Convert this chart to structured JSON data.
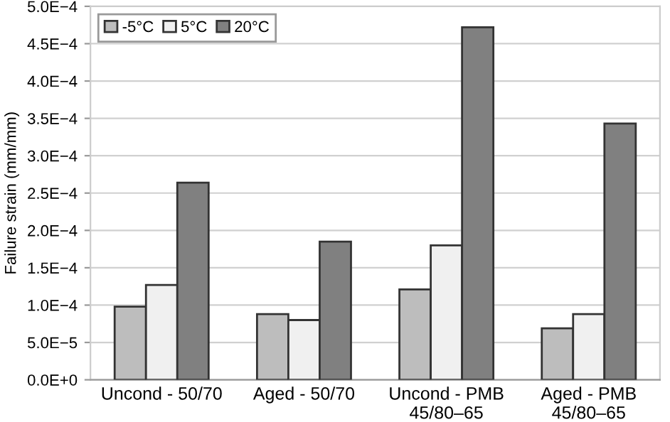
{
  "chart_data": {
    "type": "bar",
    "ylabel": "Failure strain (mm/mm)",
    "categories": [
      "Uncond - 50/70",
      "Aged - 50/70",
      "Uncond - PMB\n45/80–65",
      "Aged - PMB\n45/80–65"
    ],
    "series": [
      {
        "name": "-5°C",
        "color": "#bdbdbd",
        "values": [
          9.8e-05,
          8.8e-05,
          0.000121,
          6.9e-05
        ]
      },
      {
        "name": "5°C",
        "color": "#f0f0f0",
        "values": [
          0.000127,
          8e-05,
          0.00018,
          8.8e-05
        ]
      },
      {
        "name": "20°C",
        "color": "#808080",
        "values": [
          0.000264,
          0.000185,
          0.000472,
          0.000343
        ]
      }
    ],
    "ylim": [
      0,
      0.0005
    ],
    "yticks": [
      {
        "value": 0,
        "label": "0.0E+0"
      },
      {
        "value": 5e-05,
        "label": "5.0E−5"
      },
      {
        "value": 0.0001,
        "label": "1.0E−4"
      },
      {
        "value": 0.00015,
        "label": "1.5E−4"
      },
      {
        "value": 0.0002,
        "label": "2.0E−4"
      },
      {
        "value": 0.00025,
        "label": "2.5E−4"
      },
      {
        "value": 0.0003,
        "label": "3.0E−4"
      },
      {
        "value": 0.00035,
        "label": "3.5E−4"
      },
      {
        "value": 0.0004,
        "label": "4.0E−4"
      },
      {
        "value": 0.00045,
        "label": "4.5E−4"
      },
      {
        "value": 0.0005,
        "label": "5.0E−4"
      }
    ],
    "grid": "y",
    "legend": "top left"
  }
}
